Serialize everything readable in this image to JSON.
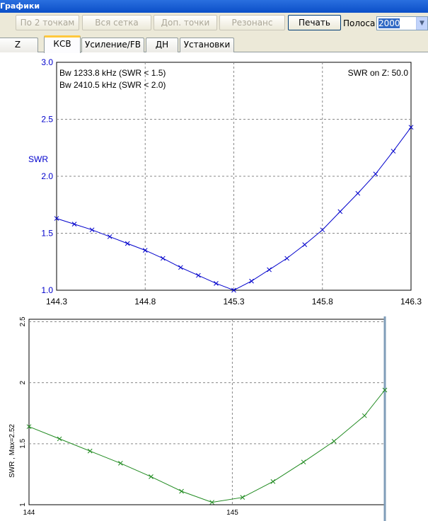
{
  "window": {
    "title": "Графики"
  },
  "toolbar": {
    "btn_two_points": "По 2 точкам",
    "btn_full_grid": "Вся сетка",
    "btn_extra_points": "Доп. точки",
    "btn_resonance": "Резонанс",
    "btn_print": "Печать",
    "band_label": "Полоса",
    "band_value": "2000"
  },
  "tabs": [
    "Z",
    "КСВ",
    "Усиление/FB",
    "ДН",
    "Установки"
  ],
  "colors": {
    "swr_curve": "#0000cc",
    "green_curve": "#1f8a1f",
    "axis": "#000000",
    "grid": "#999999"
  },
  "chart_data": [
    {
      "type": "line",
      "ylabel": "SWR",
      "annotations": [
        "Bw 1233.8 kHz (SWR < 1.5)",
        "Bw 2410.5 kHz (SWR < 2.0)",
        "SWR on Z: 50.0"
      ],
      "xlim": [
        144.3,
        146.3
      ],
      "ylim": [
        1.0,
        3.0
      ],
      "x_ticks": [
        "144.3",
        "144.8",
        "145.3",
        "145.8",
        "146.3"
      ],
      "y_ticks": [
        "1.0",
        "1.5",
        "2.0",
        "2.5",
        "3.0"
      ],
      "grid": true,
      "series": [
        {
          "x": [
            144.3,
            144.4,
            144.5,
            144.6,
            144.7,
            144.8,
            144.9,
            145.0,
            145.1,
            145.2,
            145.3,
            145.4,
            145.5,
            145.6,
            145.7,
            145.8,
            145.9,
            146.0,
            146.1,
            146.2,
            146.3
          ],
          "y": [
            1.63,
            1.58,
            1.53,
            1.47,
            1.41,
            1.35,
            1.28,
            1.2,
            1.13,
            1.06,
            1.0,
            1.08,
            1.18,
            1.28,
            1.4,
            1.53,
            1.69,
            1.85,
            2.02,
            2.22,
            2.43
          ]
        }
      ]
    },
    {
      "type": "line",
      "ylabel": "SWR , Max=2.52",
      "xlim": [
        144.0,
        145.75
      ],
      "ylim": [
        1.0,
        2.52
      ],
      "x_ticks": [
        "144",
        "145"
      ],
      "y_ticks": [
        "1",
        "1.5",
        "2",
        "2.5"
      ],
      "grid": true,
      "series": [
        {
          "x": [
            144.0,
            144.15,
            144.3,
            144.45,
            144.6,
            144.75,
            144.9,
            145.05,
            145.2,
            145.35,
            145.5,
            145.65,
            145.75
          ],
          "y": [
            1.64,
            1.54,
            1.44,
            1.34,
            1.23,
            1.11,
            1.02,
            1.06,
            1.19,
            1.35,
            1.52,
            1.73,
            1.94
          ]
        }
      ]
    }
  ]
}
